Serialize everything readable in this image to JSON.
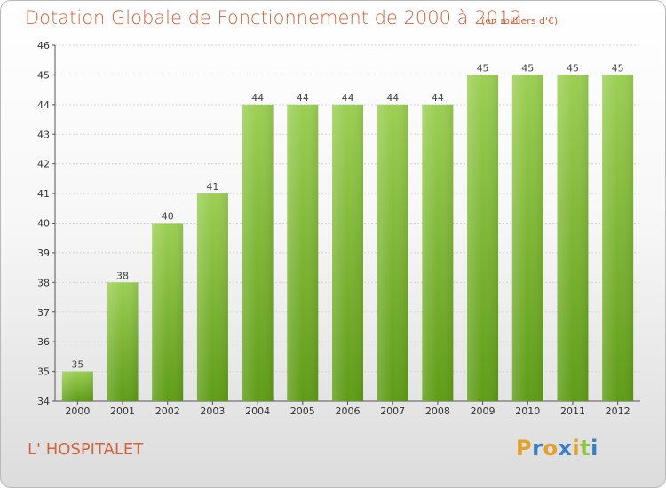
{
  "title_main": "Dotation Globale de Fonctionnement de 2000 à 2012",
  "title_unit": "(en milliers d'€)",
  "commune": "L' HOSPITALET",
  "logo": {
    "letters": [
      "P",
      "r",
      "o",
      "x",
      "i",
      "t",
      "i"
    ],
    "colors": [
      "#e2a12b",
      "#3a7fc4",
      "#e2a12b",
      "#3a7fc4",
      "#e2a12b",
      "#8cc63f",
      "#3a7fc4"
    ]
  },
  "colors": {
    "bar_top": "#9ccf54",
    "bar_bottom": "#5f9c17",
    "title": "#d2643c"
  },
  "chart_data": {
    "type": "bar",
    "categories": [
      "2000",
      "2001",
      "2002",
      "2003",
      "2004",
      "2005",
      "2006",
      "2007",
      "2008",
      "2009",
      "2010",
      "2011",
      "2012"
    ],
    "values": [
      35,
      38,
      40,
      41,
      44,
      44,
      44,
      44,
      44,
      45,
      45,
      45,
      45
    ],
    "ylim": [
      34,
      46
    ],
    "yticks": [
      34,
      35,
      36,
      37,
      38,
      39,
      40,
      41,
      42,
      43,
      44,
      45,
      46
    ],
    "grid": true
  }
}
